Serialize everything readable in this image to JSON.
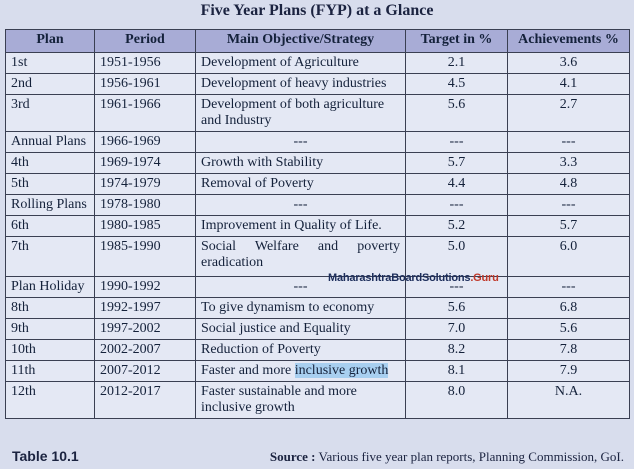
{
  "title": "Five Year Plans (FYP) at a Glance",
  "columns": [
    "Plan",
    "Period",
    "Main Objective/Strategy",
    "Target in %",
    "Achievements %"
  ],
  "rows": [
    {
      "plan": "1st",
      "period": "1951-1956",
      "objective": "Development of Agriculture",
      "target": "2.1",
      "achievement": "3.6"
    },
    {
      "plan": "2nd",
      "period": "1956-1961",
      "objective": "Development of heavy industries",
      "target": "4.5",
      "achievement": "4.1"
    },
    {
      "plan": "3rd",
      "period": "1961-1966",
      "objective": "Development of both agriculture and Industry",
      "target": "5.6",
      "achievement": "2.7"
    },
    {
      "plan": "Annual Plans",
      "period": "1966-1969",
      "objective": "---",
      "target": "---",
      "achievement": "---"
    },
    {
      "plan": "4th",
      "period": "1969-1974",
      "objective": "Growth with Stability",
      "target": "5.7",
      "achievement": "3.3"
    },
    {
      "plan": "5th",
      "period": "1974-1979",
      "objective": "Removal of Poverty",
      "target": "4.4",
      "achievement": "4.8"
    },
    {
      "plan": "Rolling Plans",
      "period": "1978-1980",
      "objective": "---",
      "target": "---",
      "achievement": "---"
    },
    {
      "plan": "6th",
      "period": "1980-1985",
      "objective": "Improvement in Quality of Life.",
      "target": "5.2",
      "achievement": "5.7"
    },
    {
      "plan": "7th",
      "period": "1985-1990",
      "objective_line1": "Social Welfare and poverty",
      "objective_line2": "eradication",
      "target": "5.0",
      "achievement": "6.0"
    },
    {
      "plan": "Plan Holiday",
      "period": "1990-1992",
      "objective": "---",
      "target": "---",
      "achievement": "---"
    },
    {
      "plan": "8th",
      "period": "1992-1997",
      "objective": "To give dynamism to economy",
      "target": "5.6",
      "achievement": "6.8"
    },
    {
      "plan": "9th",
      "period": "1997-2002",
      "objective": "Social justice and Equality",
      "target": "7.0",
      "achievement": "5.6"
    },
    {
      "plan": "10th",
      "period": "2002-2007",
      "objective": "Reduction of Poverty",
      "target": "8.2",
      "achievement": "7.8"
    },
    {
      "plan": "11th",
      "period": "2007-2012",
      "objective_plain": "Faster and more ",
      "objective_highlight": "inclusive growth",
      "target": "8.1",
      "achievement": "7.9"
    },
    {
      "plan": "12th",
      "period": "2012-2017",
      "objective": "Faster sustainable and more inclusive growth",
      "target": "8.0",
      "achievement": "N.A."
    }
  ],
  "watermark": {
    "main": "MaharashtraBoardSolutions",
    "suffix": ".Guru"
  },
  "caption": "Table 10.1",
  "source": {
    "label": "Source :",
    "text": " Various five year plan reports, Planning Commission, GoI."
  },
  "colors": {
    "header_bg": "#a8acd6",
    "cell_bg": "#e4e8f4",
    "page_bg": "#d8dded",
    "highlight": "#a8cff0"
  }
}
